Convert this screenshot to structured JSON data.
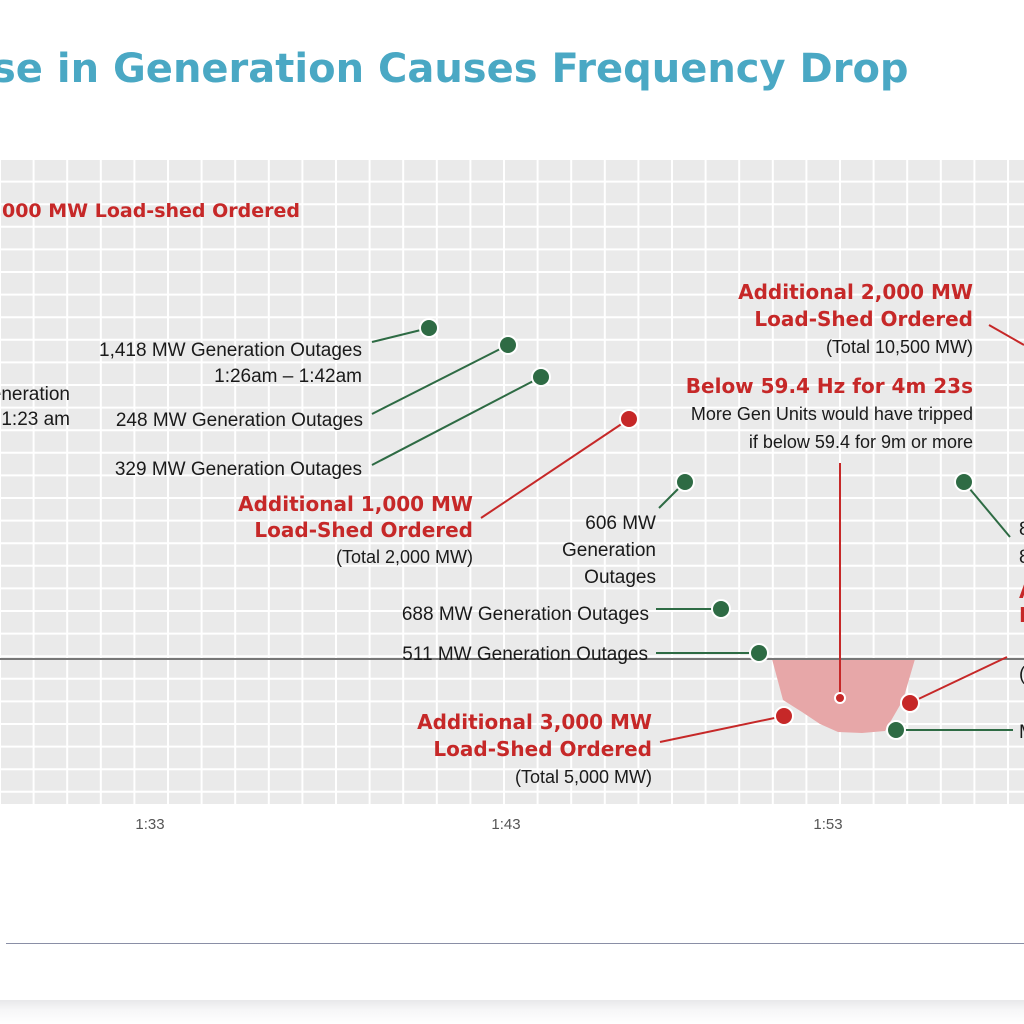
{
  "title": "se in Generation Causes Frequency Drop",
  "colors": {
    "accent_title": "#4aa8c4",
    "outage": "#2e6b44",
    "loadshed": "#c62828",
    "below_fill": "#e7a7a8",
    "baseline": "#777777",
    "grid_bg": "#eaeaea"
  },
  "chart_data": {
    "type": "annotated-timeline",
    "x_ticks": [
      "1:33",
      "1:43",
      "1:53"
    ],
    "threshold_hz": 59.4,
    "grid": true,
    "annotations": [
      {
        "id": "loadshed-top",
        "kind": "loadshed",
        "lines": [
          ",000 MW Load-shed Ordered"
        ]
      },
      {
        "id": "gen-left",
        "kind": "outage",
        "lines": [
          "eneration",
          "1:23 am"
        ]
      },
      {
        "id": "gen-1418",
        "kind": "outage",
        "lines": [
          "1,418 MW Generation Outages",
          "1:26am – 1:42am"
        ]
      },
      {
        "id": "gen-248",
        "kind": "outage",
        "lines": [
          "248 MW Generation Outages"
        ]
      },
      {
        "id": "gen-329",
        "kind": "outage",
        "lines": [
          "329 MW Generation Outages"
        ]
      },
      {
        "id": "loadshed-1000",
        "kind": "loadshed",
        "lines": [
          "Additional 1,000 MW",
          "Load-Shed Ordered"
        ],
        "note": "(Total 2,000 MW)"
      },
      {
        "id": "gen-606",
        "kind": "outage",
        "lines": [
          "606 MW",
          "Generation",
          "Outages"
        ]
      },
      {
        "id": "gen-688",
        "kind": "outage",
        "lines": [
          "688 MW Generation Outages"
        ]
      },
      {
        "id": "gen-511",
        "kind": "outage",
        "lines": [
          "511 MW Generation Outages"
        ]
      },
      {
        "id": "loadshed-3000",
        "kind": "loadshed",
        "lines": [
          "Additional 3,000 MW",
          "Load-Shed Ordered"
        ],
        "note": "(Total 5,000 MW)"
      },
      {
        "id": "loadshed-2000",
        "kind": "loadshed",
        "lines": [
          "Additional 2,000 MW",
          "Load-Shed Ordered"
        ],
        "note": "(Total 10,500 MW)"
      },
      {
        "id": "below-594",
        "kind": "threshold",
        "lines": [
          "Below 59.4 Hz for 4m 23s"
        ],
        "notes": [
          "More Gen Units would have tripped",
          "if below 59.4 for 9m or more"
        ]
      },
      {
        "id": "right-8a",
        "kind": "outage",
        "lines": [
          "8"
        ]
      },
      {
        "id": "right-8b",
        "kind": "outage",
        "lines": [
          "8"
        ]
      },
      {
        "id": "right-a",
        "kind": "loadshed",
        "lines": [
          "A"
        ]
      },
      {
        "id": "right-i",
        "kind": "loadshed",
        "lines": [
          "I"
        ]
      },
      {
        "id": "right-paren",
        "kind": "outage",
        "lines": [
          "("
        ]
      },
      {
        "id": "right-m",
        "kind": "outage",
        "lines": [
          "M"
        ]
      }
    ]
  }
}
